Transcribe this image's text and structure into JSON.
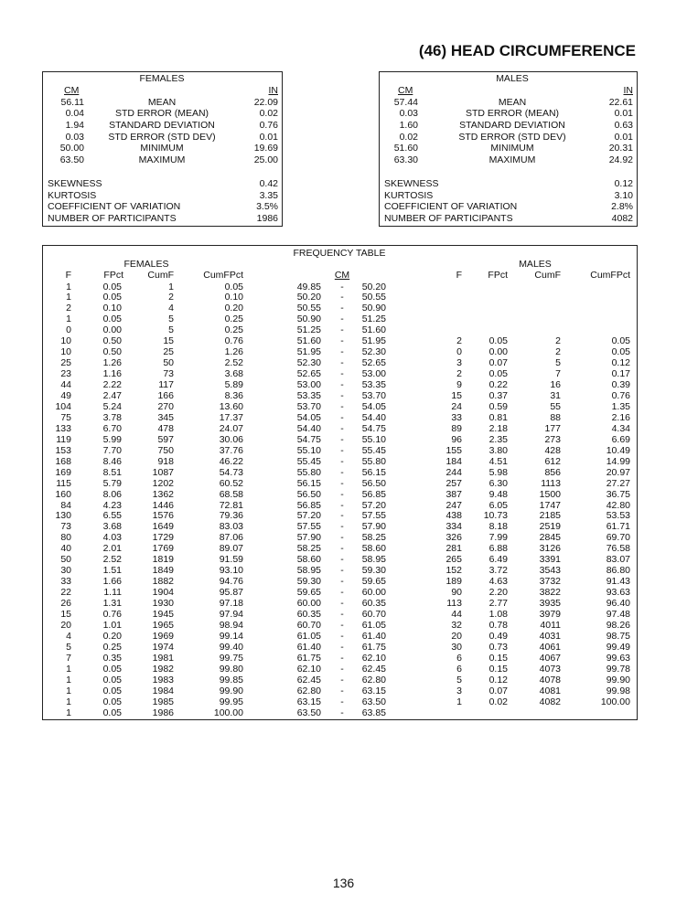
{
  "title": "(46) HEAD CIRCUMFERENCE",
  "page_number": "136",
  "summary": {
    "cm_label": "CM",
    "in_label": "IN",
    "females": {
      "heading": "FEMALES",
      "stats": [
        {
          "cm": "56.11",
          "label": "MEAN",
          "in": "22.09"
        },
        {
          "cm": "0.04",
          "label": "STD ERROR (MEAN)",
          "in": "0.02"
        },
        {
          "cm": "1.94",
          "label": "STANDARD DEVIATION",
          "in": "0.76"
        },
        {
          "cm": "0.03",
          "label": "STD ERROR (STD DEV)",
          "in": "0.01"
        },
        {
          "cm": "50.00",
          "label": "MINIMUM",
          "in": "19.69"
        },
        {
          "cm": "63.50",
          "label": "MAXIMUM",
          "in": "25.00"
        }
      ],
      "extra": [
        {
          "label": "SKEWNESS",
          "value": "0.42"
        },
        {
          "label": "KURTOSIS",
          "value": "3.35"
        },
        {
          "label": "COEFFICIENT OF VARIATION",
          "value": "3.5%"
        },
        {
          "label": "NUMBER OF PARTICIPANTS",
          "value": "1986"
        }
      ]
    },
    "males": {
      "heading": "MALES",
      "stats": [
        {
          "cm": "57.44",
          "label": "MEAN",
          "in": "22.61"
        },
        {
          "cm": "0.03",
          "label": "STD ERROR (MEAN)",
          "in": "0.01"
        },
        {
          "cm": "1.60",
          "label": "STANDARD DEVIATION",
          "in": "0.63"
        },
        {
          "cm": "0.02",
          "label": "STD ERROR (STD DEV)",
          "in": "0.01"
        },
        {
          "cm": "51.60",
          "label": "MINIMUM",
          "in": "20.31"
        },
        {
          "cm": "63.30",
          "label": "MAXIMUM",
          "in": "24.92"
        }
      ],
      "extra": [
        {
          "label": "SKEWNESS",
          "value": "0.12"
        },
        {
          "label": "KURTOSIS",
          "value": "3.10"
        },
        {
          "label": "COEFFICIENT OF VARIATION",
          "value": "2.8%"
        },
        {
          "label": "NUMBER OF PARTICIPANTS",
          "value": "4082"
        }
      ]
    }
  },
  "freq": {
    "heading": "FREQUENCY TABLE",
    "females_heading": "FEMALES",
    "males_heading": "MALES",
    "cm_label": "CM",
    "dash": "-",
    "columns": [
      "F",
      "FPct",
      "CumF",
      "CumFPct"
    ],
    "cm_ranges": [
      [
        "49.85",
        "50.20"
      ],
      [
        "50.20",
        "50.55"
      ],
      [
        "50.55",
        "50.90"
      ],
      [
        "50.90",
        "51.25"
      ],
      [
        "51.25",
        "51.60"
      ],
      [
        "51.60",
        "51.95"
      ],
      [
        "51.95",
        "52.30"
      ],
      [
        "52.30",
        "52.65"
      ],
      [
        "52.65",
        "53.00"
      ],
      [
        "53.00",
        "53.35"
      ],
      [
        "53.35",
        "53.70"
      ],
      [
        "53.70",
        "54.05"
      ],
      [
        "54.05",
        "54.40"
      ],
      [
        "54.40",
        "54.75"
      ],
      [
        "54.75",
        "55.10"
      ],
      [
        "55.10",
        "55.45"
      ],
      [
        "55.45",
        "55.80"
      ],
      [
        "55.80",
        "56.15"
      ],
      [
        "56.15",
        "56.50"
      ],
      [
        "56.50",
        "56.85"
      ],
      [
        "56.85",
        "57.20"
      ],
      [
        "57.20",
        "57.55"
      ],
      [
        "57.55",
        "57.90"
      ],
      [
        "57.90",
        "58.25"
      ],
      [
        "58.25",
        "58.60"
      ],
      [
        "58.60",
        "58.95"
      ],
      [
        "58.95",
        "59.30"
      ],
      [
        "59.30",
        "59.65"
      ],
      [
        "59.65",
        "60.00"
      ],
      [
        "60.00",
        "60.35"
      ],
      [
        "60.35",
        "60.70"
      ],
      [
        "60.70",
        "61.05"
      ],
      [
        "61.05",
        "61.40"
      ],
      [
        "61.40",
        "61.75"
      ],
      [
        "61.75",
        "62.10"
      ],
      [
        "62.10",
        "62.45"
      ],
      [
        "62.45",
        "62.80"
      ],
      [
        "62.80",
        "63.15"
      ],
      [
        "63.15",
        "63.50"
      ],
      [
        "63.50",
        "63.85"
      ]
    ],
    "females": [
      [
        "1",
        "0.05",
        "1",
        "0.05"
      ],
      [
        "1",
        "0.05",
        "2",
        "0.10"
      ],
      [
        "2",
        "0.10",
        "4",
        "0.20"
      ],
      [
        "1",
        "0.05",
        "5",
        "0.25"
      ],
      [
        "0",
        "0.00",
        "5",
        "0.25"
      ],
      [
        "10",
        "0.50",
        "15",
        "0.76"
      ],
      [
        "10",
        "0.50",
        "25",
        "1.26"
      ],
      [
        "25",
        "1.26",
        "50",
        "2.52"
      ],
      [
        "23",
        "1.16",
        "73",
        "3.68"
      ],
      [
        "44",
        "2.22",
        "117",
        "5.89"
      ],
      [
        "49",
        "2.47",
        "166",
        "8.36"
      ],
      [
        "104",
        "5.24",
        "270",
        "13.60"
      ],
      [
        "75",
        "3.78",
        "345",
        "17.37"
      ],
      [
        "133",
        "6.70",
        "478",
        "24.07"
      ],
      [
        "119",
        "5.99",
        "597",
        "30.06"
      ],
      [
        "153",
        "7.70",
        "750",
        "37.76"
      ],
      [
        "168",
        "8.46",
        "918",
        "46.22"
      ],
      [
        "169",
        "8.51",
        "1087",
        "54.73"
      ],
      [
        "115",
        "5.79",
        "1202",
        "60.52"
      ],
      [
        "160",
        "8.06",
        "1362",
        "68.58"
      ],
      [
        "84",
        "4.23",
        "1446",
        "72.81"
      ],
      [
        "130",
        "6.55",
        "1576",
        "79.36"
      ],
      [
        "73",
        "3.68",
        "1649",
        "83.03"
      ],
      [
        "80",
        "4.03",
        "1729",
        "87.06"
      ],
      [
        "40",
        "2.01",
        "1769",
        "89.07"
      ],
      [
        "50",
        "2.52",
        "1819",
        "91.59"
      ],
      [
        "30",
        "1.51",
        "1849",
        "93.10"
      ],
      [
        "33",
        "1.66",
        "1882",
        "94.76"
      ],
      [
        "22",
        "1.11",
        "1904",
        "95.87"
      ],
      [
        "26",
        "1.31",
        "1930",
        "97.18"
      ],
      [
        "15",
        "0.76",
        "1945",
        "97.94"
      ],
      [
        "20",
        "1.01",
        "1965",
        "98.94"
      ],
      [
        "4",
        "0.20",
        "1969",
        "99.14"
      ],
      [
        "5",
        "0.25",
        "1974",
        "99.40"
      ],
      [
        "7",
        "0.35",
        "1981",
        "99.75"
      ],
      [
        "1",
        "0.05",
        "1982",
        "99.80"
      ],
      [
        "1",
        "0.05",
        "1983",
        "99.85"
      ],
      [
        "1",
        "0.05",
        "1984",
        "99.90"
      ],
      [
        "1",
        "0.05",
        "1985",
        "99.95"
      ],
      [
        "1",
        "0.05",
        "1986",
        "100.00"
      ]
    ],
    "males": [
      null,
      null,
      null,
      null,
      null,
      [
        "2",
        "0.05",
        "2",
        "0.05"
      ],
      [
        "0",
        "0.00",
        "2",
        "0.05"
      ],
      [
        "3",
        "0.07",
        "5",
        "0.12"
      ],
      [
        "2",
        "0.05",
        "7",
        "0.17"
      ],
      [
        "9",
        "0.22",
        "16",
        "0.39"
      ],
      [
        "15",
        "0.37",
        "31",
        "0.76"
      ],
      [
        "24",
        "0.59",
        "55",
        "1.35"
      ],
      [
        "33",
        "0.81",
        "88",
        "2.16"
      ],
      [
        "89",
        "2.18",
        "177",
        "4.34"
      ],
      [
        "96",
        "2.35",
        "273",
        "6.69"
      ],
      [
        "155",
        "3.80",
        "428",
        "10.49"
      ],
      [
        "184",
        "4.51",
        "612",
        "14.99"
      ],
      [
        "244",
        "5.98",
        "856",
        "20.97"
      ],
      [
        "257",
        "6.30",
        "1113",
        "27.27"
      ],
      [
        "387",
        "9.48",
        "1500",
        "36.75"
      ],
      [
        "247",
        "6.05",
        "1747",
        "42.80"
      ],
      [
        "438",
        "10.73",
        "2185",
        "53.53"
      ],
      [
        "334",
        "8.18",
        "2519",
        "61.71"
      ],
      [
        "326",
        "7.99",
        "2845",
        "69.70"
      ],
      [
        "281",
        "6.88",
        "3126",
        "76.58"
      ],
      [
        "265",
        "6.49",
        "3391",
        "83.07"
      ],
      [
        "152",
        "3.72",
        "3543",
        "86.80"
      ],
      [
        "189",
        "4.63",
        "3732",
        "91.43"
      ],
      [
        "90",
        "2.20",
        "3822",
        "93.63"
      ],
      [
        "113",
        "2.77",
        "3935",
        "96.40"
      ],
      [
        "44",
        "1.08",
        "3979",
        "97.48"
      ],
      [
        "32",
        "0.78",
        "4011",
        "98.26"
      ],
      [
        "20",
        "0.49",
        "4031",
        "98.75"
      ],
      [
        "30",
        "0.73",
        "4061",
        "99.49"
      ],
      [
        "6",
        "0.15",
        "4067",
        "99.63"
      ],
      [
        "6",
        "0.15",
        "4073",
        "99.78"
      ],
      [
        "5",
        "0.12",
        "4078",
        "99.90"
      ],
      [
        "3",
        "0.07",
        "4081",
        "99.98"
      ],
      [
        "1",
        "0.02",
        "4082",
        "100.00"
      ],
      null
    ]
  }
}
